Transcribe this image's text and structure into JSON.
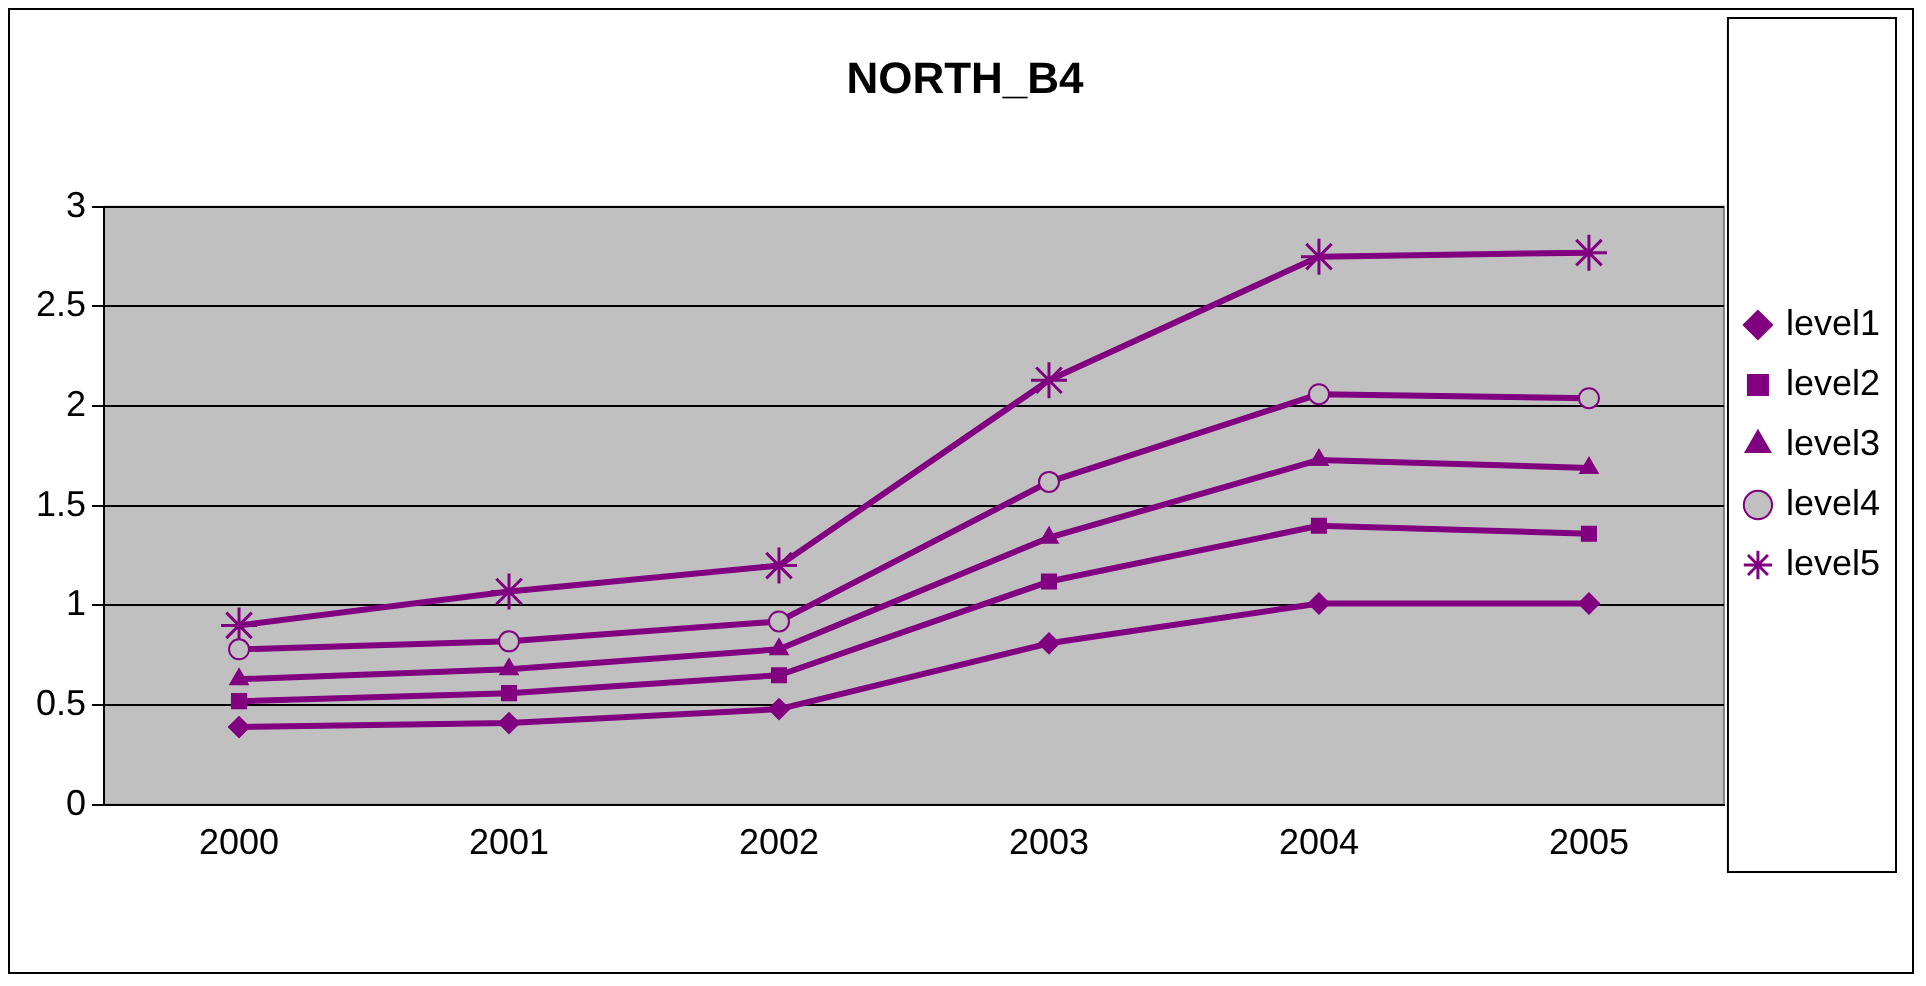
{
  "chart_data": {
    "type": "line",
    "title": "NORTH_B4",
    "categories": [
      "2000",
      "2001",
      "2002",
      "2003",
      "2004",
      "2005"
    ],
    "series": [
      {
        "name": "level1",
        "color": "#800080",
        "marker": "diamond",
        "values": [
          0.39,
          0.41,
          0.48,
          0.81,
          1.01,
          1.01
        ]
      },
      {
        "name": "level2",
        "color": "#800080",
        "marker": "square",
        "values": [
          0.52,
          0.56,
          0.65,
          1.12,
          1.4,
          1.36
        ]
      },
      {
        "name": "level3",
        "color": "#800080",
        "marker": "triangle",
        "values": [
          0.63,
          0.68,
          0.78,
          1.34,
          1.73,
          1.69
        ]
      },
      {
        "name": "level4",
        "color": "#800080",
        "marker": "circle",
        "values": [
          0.78,
          0.82,
          0.92,
          1.62,
          2.06,
          2.04
        ]
      },
      {
        "name": "level5",
        "color": "#800080",
        "marker": "cross",
        "values": [
          0.9,
          1.07,
          1.2,
          2.13,
          2.75,
          2.77
        ]
      }
    ],
    "ylim": [
      0,
      3
    ],
    "yticks": [
      0,
      0.5,
      1,
      1.5,
      2,
      2.5,
      3
    ],
    "grid": "y",
    "legend": "right"
  }
}
